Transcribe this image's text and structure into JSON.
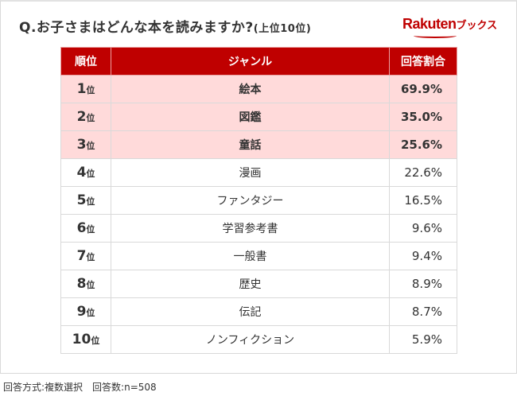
{
  "title": {
    "main": "Q.お子さまはどんな本を読みますか?",
    "suffix": "(上位10位)"
  },
  "logo": {
    "brand": "Rakuten",
    "sub": "ブックス"
  },
  "chart_data": {
    "type": "table",
    "columns": [
      "順位",
      "ジャンル",
      "回答割合"
    ],
    "rows": [
      {
        "rank": "1",
        "unit": "位",
        "genre": "絵本",
        "pct": "69.9%"
      },
      {
        "rank": "2",
        "unit": "位",
        "genre": "図鑑",
        "pct": "35.0%"
      },
      {
        "rank": "3",
        "unit": "位",
        "genre": "童話",
        "pct": "25.6%"
      },
      {
        "rank": "4",
        "unit": "位",
        "genre": "漫画",
        "pct": "22.6%"
      },
      {
        "rank": "5",
        "unit": "位",
        "genre": "ファンタジー",
        "pct": "16.5%"
      },
      {
        "rank": "6",
        "unit": "位",
        "genre": "学習参考書",
        "pct": "9.6%"
      },
      {
        "rank": "7",
        "unit": "位",
        "genre": "一般書",
        "pct": "9.4%"
      },
      {
        "rank": "8",
        "unit": "位",
        "genre": "歴史",
        "pct": "8.9%"
      },
      {
        "rank": "9",
        "unit": "位",
        "genre": "伝記",
        "pct": "8.7%"
      },
      {
        "rank": "10",
        "unit": "位",
        "genre": "ノンフィクション",
        "pct": "5.9%"
      }
    ],
    "highlight_top": 3
  },
  "footer": "回答方式:複数選択　回答数:n=508",
  "colors": {
    "header": "#bf0000",
    "highlight": "#ffdada"
  }
}
